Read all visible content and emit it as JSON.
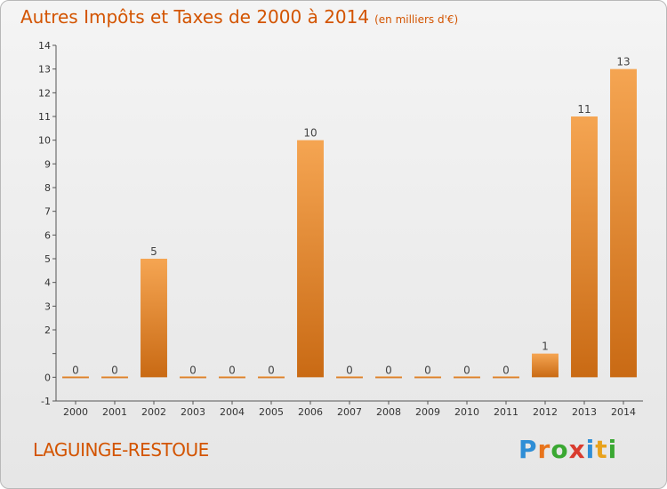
{
  "header": {
    "title": "Autres Impôts et Taxes de 2000 à 2014",
    "unit": "(en milliers d'€)"
  },
  "footer": {
    "commune": "LAGUINGE-RESTOUE",
    "logo": [
      "P",
      "r",
      "o",
      "x",
      "i",
      "t",
      "i"
    ],
    "logo_colors": [
      "#2f8ed6",
      "#e8741c",
      "#3aa832",
      "#d93c2f",
      "#2f8ed6",
      "#e8a21c",
      "#3aa832"
    ]
  },
  "colors": {
    "bar_light": "#f5a552",
    "bar_dark": "#c96a14",
    "accent": "#d35400"
  },
  "chart_data": {
    "type": "bar",
    "title": "Autres Impôts et Taxes de 2000 à 2014",
    "subtitle": "(en milliers d'€)",
    "categories": [
      "2000",
      "2001",
      "2002",
      "2003",
      "2004",
      "2005",
      "2006",
      "2007",
      "2008",
      "2009",
      "2010",
      "2011",
      "2012",
      "2013",
      "2014"
    ],
    "values": [
      0,
      0,
      5,
      0,
      0,
      0,
      10,
      0,
      0,
      0,
      0,
      0,
      1,
      11,
      13
    ],
    "ylim": [
      -1,
      14
    ],
    "yticks": [
      -1,
      0,
      1,
      2,
      3,
      4,
      5,
      6,
      7,
      8,
      9,
      10,
      11,
      12,
      13,
      14
    ],
    "ytick_labels": [
      "-1",
      "0",
      "",
      "2",
      "3",
      "4",
      "5",
      "6",
      "7",
      "8",
      "9",
      "10",
      "11",
      "12",
      "13",
      "14"
    ],
    "grid": false,
    "data_labels": true
  }
}
